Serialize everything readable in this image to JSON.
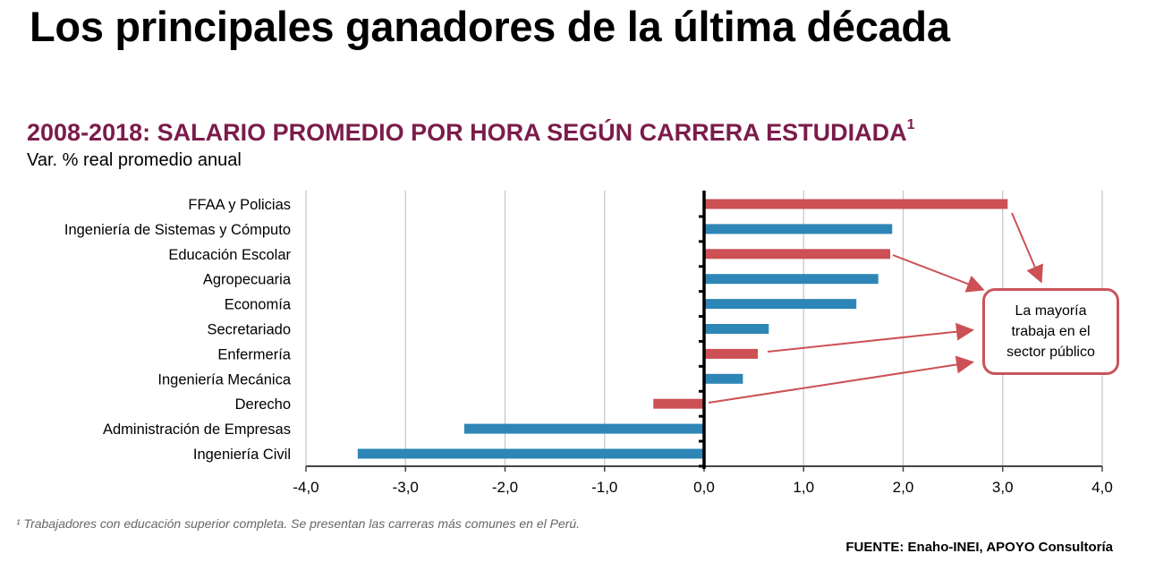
{
  "title": "Los principales ganadores de la última década",
  "subtitle": "2008-2018: SALARIO PROMEDIO POR HORA SEGÚN CARRERA ESTUDIADA",
  "subtitle_footnote_mark": "1",
  "footnote": "¹ Trabajadores con educación superior completa. Se presentan las carreras más comunes en el Perú.",
  "source": "FUENTE: Enaho-INEI, APOYO Consultoría",
  "callout": {
    "line1": "La mayoría",
    "line2": "trabaja en el",
    "line3": "sector público"
  },
  "colors": {
    "public_sector": "#cc5054",
    "other": "#2e86b6",
    "subtitle": "#7b1c4b"
  },
  "chart_data": {
    "type": "bar",
    "orientation": "horizontal",
    "ylabel": "Var. % real promedio anual",
    "categories": [
      "FFAA y Policias",
      "Ingeniería de Sistemas y Cómputo",
      "Educación Escolar",
      "Agropecuaria",
      "Economía",
      "Secretariado",
      "Enfermería",
      "Ingeniería Mecánica",
      "Derecho",
      "Administración de Empresas",
      "Ingeniería Civil"
    ],
    "values": [
      3.05,
      1.89,
      1.87,
      1.75,
      1.53,
      0.65,
      0.54,
      0.39,
      -0.51,
      -2.41,
      -3.48
    ],
    "highlight_public_sector": [
      true,
      false,
      true,
      false,
      false,
      false,
      true,
      false,
      true,
      false,
      false
    ],
    "xlim": [
      -4,
      4
    ],
    "xticks": [
      "-4,0",
      "-3,0",
      "-2,0",
      "-1,0",
      "0,0",
      "1,0",
      "2,0",
      "3,0",
      "4,0"
    ],
    "xtick_values": [
      -4,
      -3,
      -2,
      -1,
      0,
      1,
      2,
      3,
      4
    ],
    "grid": "vertical"
  }
}
